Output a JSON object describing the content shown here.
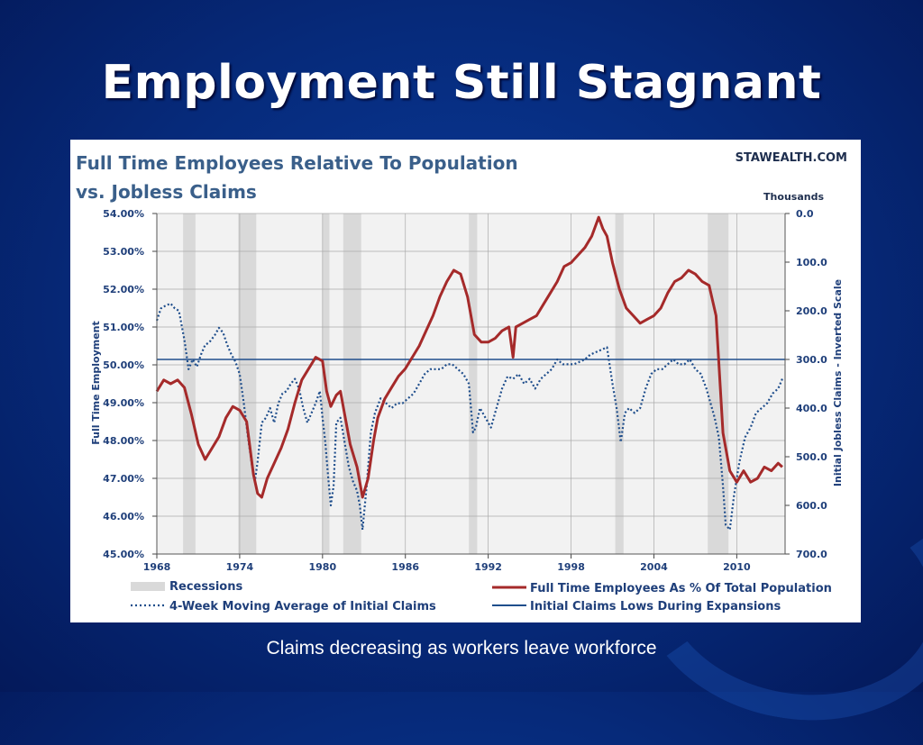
{
  "slide": {
    "title": "Employment Still Stagnant",
    "caption": "Claims decreasing as workers leave workforce"
  },
  "chart_data": {
    "type": "line",
    "title_line1": "Full Time Employees Relative To Population",
    "title_line2": "vs. Jobless Claims",
    "source": "STAWEALTH.COM",
    "y2_units": "Thousands",
    "ylabel": "Full Time Employment",
    "y2label": "Initial Jobless Claims - Inverted Scale",
    "ylim": [
      45.0,
      54.0
    ],
    "y2lim": [
      0,
      700
    ],
    "y2_inverted": true,
    "xlim": [
      1968,
      2013.5
    ],
    "x_ticks": [
      "1968",
      "1974",
      "1980",
      "1986",
      "1992",
      "1998",
      "2004",
      "2010"
    ],
    "y_ticks": [
      "54.00%",
      "53.00%",
      "52.00%",
      "51.00%",
      "50.00%",
      "49.00%",
      "48.00%",
      "47.00%",
      "46.00%",
      "45.00%"
    ],
    "y2_ticks": [
      "0.0",
      "100.0",
      "200.0",
      "300.0",
      "400.0",
      "500.0",
      "600.0",
      "700.0"
    ],
    "grid": true,
    "recessions": [
      [
        1969.9,
        1970.8
      ],
      [
        1973.9,
        1975.2
      ],
      [
        1980.0,
        1980.5
      ],
      [
        1981.5,
        1982.8
      ],
      [
        1990.6,
        1991.2
      ],
      [
        2001.2,
        2001.8
      ],
      [
        2007.9,
        2009.4
      ]
    ],
    "series": [
      {
        "name": "Full Time Employees As % Of Total Population",
        "color": "#a52a2a",
        "style": "solid",
        "axis": "left",
        "x": [
          1968.0,
          1968.5,
          1969.0,
          1969.5,
          1970.0,
          1970.5,
          1971.0,
          1971.5,
          1972.0,
          1972.5,
          1973.0,
          1973.5,
          1974.0,
          1974.5,
          1975.0,
          1975.3,
          1975.6,
          1976.0,
          1976.5,
          1977.0,
          1977.5,
          1978.0,
          1978.5,
          1979.0,
          1979.5,
          1980.0,
          1980.3,
          1980.6,
          1981.0,
          1981.3,
          1981.6,
          1982.0,
          1982.5,
          1982.9,
          1983.3,
          1983.7,
          1984.0,
          1984.5,
          1985.0,
          1985.5,
          1986.0,
          1986.5,
          1987.0,
          1987.5,
          1988.0,
          1988.5,
          1989.0,
          1989.5,
          1990.0,
          1990.5,
          1991.0,
          1991.5,
          1992.0,
          1992.5,
          1993.0,
          1993.5,
          1993.8,
          1994.0,
          1994.5,
          1995.0,
          1995.5,
          1996.0,
          1996.5,
          1997.0,
          1997.5,
          1998.0,
          1998.5,
          1999.0,
          1999.5,
          2000.0,
          2000.3,
          2000.6,
          2001.0,
          2001.5,
          2002.0,
          2002.5,
          2003.0,
          2003.5,
          2004.0,
          2004.5,
          2005.0,
          2005.5,
          2006.0,
          2006.5,
          2007.0,
          2007.5,
          2008.0,
          2008.5,
          2009.0,
          2009.5,
          2010.0,
          2010.5,
          2011.0,
          2011.5,
          2012.0,
          2012.5,
          2013.0,
          2013.3
        ],
        "values": [
          49.3,
          49.6,
          49.5,
          49.6,
          49.4,
          48.7,
          47.9,
          47.5,
          47.8,
          48.1,
          48.6,
          48.9,
          48.8,
          48.5,
          47.1,
          46.6,
          46.5,
          47.0,
          47.4,
          47.8,
          48.3,
          49.0,
          49.6,
          49.9,
          50.2,
          50.1,
          49.3,
          48.9,
          49.2,
          49.3,
          48.7,
          47.9,
          47.3,
          46.5,
          47.0,
          48.0,
          48.6,
          49.1,
          49.4,
          49.7,
          49.9,
          50.2,
          50.5,
          50.9,
          51.3,
          51.8,
          52.2,
          52.5,
          52.4,
          51.8,
          50.8,
          50.6,
          50.6,
          50.7,
          50.9,
          51.0,
          50.2,
          51.0,
          51.1,
          51.2,
          51.3,
          51.6,
          51.9,
          52.2,
          52.6,
          52.7,
          52.9,
          53.1,
          53.4,
          53.9,
          53.6,
          53.4,
          52.7,
          52.0,
          51.5,
          51.3,
          51.1,
          51.2,
          51.3,
          51.5,
          51.9,
          52.2,
          52.3,
          52.5,
          52.4,
          52.2,
          52.1,
          51.3,
          48.2,
          47.2,
          46.9,
          47.2,
          46.9,
          47.0,
          47.3,
          47.2,
          47.4,
          47.3
        ]
      },
      {
        "name": "4-Week Moving Average of Initial Claims",
        "color": "#1f4e8c",
        "style": "dotted",
        "axis": "right",
        "x": [
          1968.0,
          1968.3,
          1968.6,
          1969.0,
          1969.3,
          1969.6,
          1970.0,
          1970.3,
          1970.6,
          1970.9,
          1971.2,
          1971.5,
          1971.8,
          1972.2,
          1972.5,
          1972.8,
          1973.1,
          1973.4,
          1973.7,
          1974.0,
          1974.3,
          1974.6,
          1974.9,
          1975.1,
          1975.3,
          1975.6,
          1975.9,
          1976.2,
          1976.5,
          1976.8,
          1977.1,
          1977.4,
          1977.7,
          1978.0,
          1978.3,
          1978.6,
          1978.9,
          1979.2,
          1979.5,
          1979.8,
          1980.0,
          1980.2,
          1980.4,
          1980.6,
          1980.8,
          1981.0,
          1981.3,
          1981.6,
          1981.9,
          1982.2,
          1982.5,
          1982.7,
          1982.9,
          1983.2,
          1983.5,
          1983.8,
          1984.2,
          1984.6,
          1985.0,
          1985.4,
          1985.8,
          1986.2,
          1986.6,
          1987.0,
          1987.4,
          1987.8,
          1988.2,
          1988.6,
          1989.0,
          1989.4,
          1989.8,
          1990.2,
          1990.6,
          1990.9,
          1991.1,
          1991.4,
          1991.8,
          1992.2,
          1992.6,
          1993.0,
          1993.4,
          1993.8,
          1994.2,
          1994.6,
          1995.0,
          1995.4,
          1995.8,
          1996.2,
          1996.6,
          1997.0,
          1997.4,
          1997.8,
          1998.2,
          1998.6,
          1999.0,
          1999.4,
          1999.8,
          2000.2,
          2000.6,
          2001.0,
          2001.3,
          2001.6,
          2001.9,
          2002.2,
          2002.6,
          2003.0,
          2003.4,
          2003.8,
          2004.2,
          2004.6,
          2005.0,
          2005.4,
          2005.8,
          2006.2,
          2006.6,
          2007.0,
          2007.4,
          2007.8,
          2008.1,
          2008.4,
          2008.7,
          2009.0,
          2009.2,
          2009.5,
          2009.8,
          2010.2,
          2010.6,
          2011.0,
          2011.4,
          2011.8,
          2012.2,
          2012.6,
          2013.0,
          2013.3
        ],
        "values": [
          220,
          195,
          190,
          185,
          195,
          200,
          260,
          320,
          300,
          315,
          290,
          270,
          265,
          250,
          235,
          245,
          270,
          290,
          305,
          330,
          390,
          460,
          520,
          550,
          510,
          430,
          420,
          400,
          430,
          390,
          370,
          365,
          350,
          340,
          360,
          400,
          430,
          410,
          390,
          365,
          420,
          470,
          540,
          600,
          560,
          430,
          420,
          470,
          520,
          550,
          570,
          600,
          650,
          560,
          450,
          410,
          380,
          390,
          400,
          390,
          390,
          380,
          370,
          350,
          330,
          320,
          320,
          320,
          310,
          310,
          320,
          330,
          350,
          450,
          440,
          400,
          420,
          440,
          400,
          360,
          335,
          340,
          330,
          350,
          340,
          360,
          340,
          330,
          320,
          300,
          310,
          310,
          310,
          305,
          300,
          290,
          285,
          280,
          275,
          350,
          400,
          470,
          410,
          400,
          410,
          400,
          360,
          330,
          320,
          320,
          310,
          300,
          310,
          310,
          300,
          320,
          330,
          360,
          390,
          420,
          460,
          560,
          640,
          650,
          580,
          510,
          460,
          440,
          410,
          400,
          390,
          370,
          360,
          340
        ]
      },
      {
        "name": "Initial Claims Lows During Expansions",
        "color": "#1f4e8c",
        "style": "solid",
        "axis": "right",
        "x": [
          1968,
          2013.5
        ],
        "values": [
          300,
          300
        ]
      }
    ],
    "legend": [
      {
        "label": "Recessions",
        "kind": "rect",
        "color": "#d9d9d9"
      },
      {
        "label": "4-Week Moving Average of Initial Claims",
        "kind": "dotted",
        "color": "#1f4e8c"
      },
      {
        "label": "Full Time Employees As % Of Total Population",
        "kind": "line",
        "color": "#a52a2a"
      },
      {
        "label": "Initial Claims Lows During Expansions",
        "kind": "line",
        "color": "#1f4e8c"
      }
    ],
    "colors": {
      "plot_bg": "#f2f2f2",
      "title": "#3a5f8a",
      "axis_text": "#1f3f7a",
      "grid": "#aaaaaa",
      "recession": "#d9d9d9"
    }
  }
}
